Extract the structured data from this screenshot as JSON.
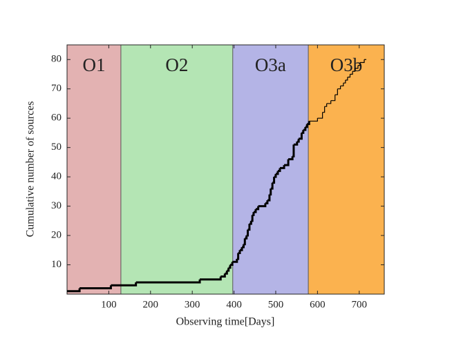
{
  "chart_data": {
    "type": "step",
    "xlabel": "Observing time[Days]",
    "ylabel": "Cumulative number of sources",
    "xlim": [
      0,
      760
    ],
    "ylim": [
      0,
      85
    ],
    "xticks": [
      100,
      200,
      300,
      400,
      500,
      600,
      700
    ],
    "yticks": [
      10,
      20,
      30,
      40,
      50,
      60,
      70,
      80
    ],
    "regions": [
      {
        "label": "O1",
        "start": 0,
        "end": 129,
        "color": "#e3b2b2"
      },
      {
        "label": "O2",
        "start": 129,
        "end": 397,
        "color": "#b4e5b4"
      },
      {
        "label": "O3a",
        "start": 397,
        "end": 578,
        "color": "#b4b4e6"
      },
      {
        "label": "O3b",
        "start": 578,
        "end": 760,
        "color": "#fbb24f"
      }
    ],
    "series": [
      {
        "color": "#000000",
        "linewidth": 3,
        "x": [
          0,
          30,
          105,
          165,
          318,
          368,
          378,
          383,
          387,
          391,
          396,
          407,
          410,
          414,
          419,
          423,
          426,
          430,
          433,
          437,
          441,
          444,
          447,
          452,
          458,
          475,
          480,
          485,
          488,
          492,
          496,
          500,
          505,
          510,
          520,
          530,
          540,
          543,
          551,
          555,
          562,
          566,
          571,
          575
        ],
        "values": [
          1,
          2,
          3,
          4,
          5,
          6,
          7,
          8,
          9,
          10,
          11,
          12,
          14,
          15,
          16,
          17,
          19,
          20,
          22,
          24,
          25,
          27,
          28,
          29,
          30,
          31,
          32,
          34,
          36,
          38,
          40,
          41,
          42,
          43,
          44,
          46,
          47,
          51,
          52,
          53,
          55,
          56,
          57,
          58
        ]
      },
      {
        "color": "#000000",
        "linewidth": 1.2,
        "x": [
          580,
          600,
          612,
          617,
          622,
          632,
          642,
          648,
          655,
          662,
          667,
          672,
          678,
          684,
          690,
          697,
          702,
          712
        ],
        "values": [
          59,
          60,
          62,
          64,
          65,
          66,
          68,
          70,
          71,
          72,
          73,
          74,
          75,
          76,
          77,
          78,
          79,
          80
        ]
      }
    ]
  }
}
